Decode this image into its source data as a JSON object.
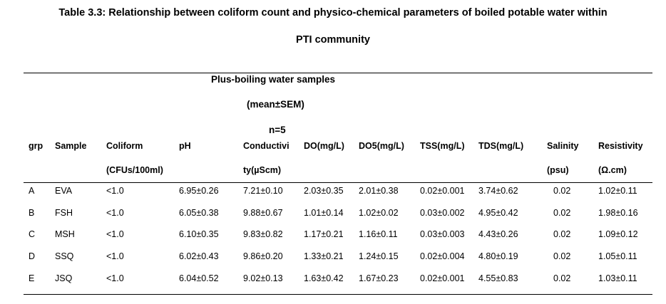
{
  "title": {
    "line1": "Table 3.3: Relationship between coliform count and physico-chemical parameters of boiled potable water within",
    "line2": "PTI community"
  },
  "subheader": {
    "line1": "Plus-boiling water samples",
    "line2": "(mean±SEM)",
    "line3": "n=5"
  },
  "columns": [
    {
      "line1": "grp",
      "line2": ""
    },
    {
      "line1": "Sample",
      "line2": ""
    },
    {
      "line1": "Coliform",
      "line2": "(CFUs/100ml)"
    },
    {
      "line1": "pH",
      "line2": ""
    },
    {
      "line1": "Conductivi",
      "line2": "ty(µScm)"
    },
    {
      "line1": "DO(mg/L)",
      "line2": ""
    },
    {
      "line1": "DO5(mg/L)",
      "line2": ""
    },
    {
      "line1": "TSS(mg/L)",
      "line2": ""
    },
    {
      "line1": "TDS(mg/L)",
      "line2": ""
    },
    {
      "line1": "Salinity",
      "line2": "(psu)"
    },
    {
      "line1": "Resistivity",
      "line2": "(Ω.cm)"
    }
  ],
  "rows": [
    [
      "A",
      "EVA",
      "<1.0",
      "6.95±0.26",
      "7.21±0.10",
      "2.03±0.35",
      "2.01±0.38",
      "0.02±0.001",
      "3.74±0.62",
      "0.02",
      "1.02±0.11"
    ],
    [
      "B",
      "FSH",
      "<1.0",
      "6.05±0.38",
      "9.88±0.67",
      "1.01±0.14",
      "1.02±0.02",
      "0.03±0.002",
      "4.95±0.42",
      "0.02",
      "1.98±0.16"
    ],
    [
      "C",
      "MSH",
      "<1.0",
      "6.10±0.35",
      "9.83±0.82",
      "1.17±0.21",
      "1.16±0.11",
      "0.03±0.003",
      "4.43±0.26",
      "0.02",
      "1.09±0.12"
    ],
    [
      "D",
      "SSQ",
      "<1.0",
      "6.02±0.43",
      "9.86±0.20",
      "1.33±0.21",
      "1.24±0.15",
      "0.02±0.004",
      "4.80±0.19",
      "0.02",
      "1.05±0.11"
    ],
    [
      "E",
      "JSQ",
      "<1.0",
      "6.04±0.52",
      "9.02±0.13",
      "1.63±0.42",
      "1.67±0.23",
      "0.02±0.001",
      "4.55±0.83",
      "0.02",
      "1.03±0.11"
    ]
  ]
}
